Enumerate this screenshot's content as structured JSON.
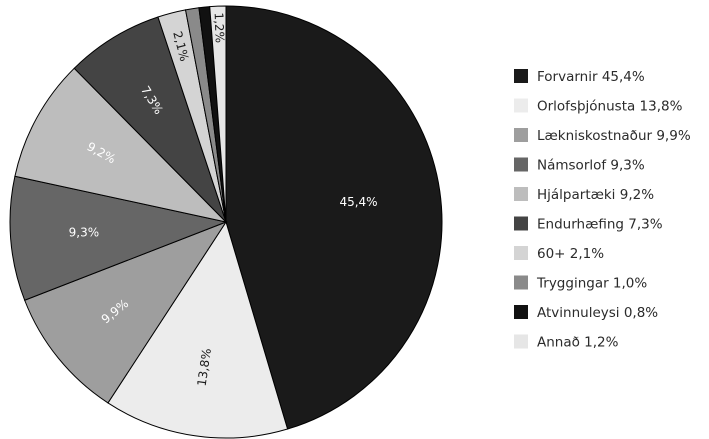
{
  "chart_data": {
    "type": "pie",
    "legend_position": "right",
    "slices": [
      {
        "label": "Forvarnir",
        "value": 45.4,
        "value_label": "45,4%",
        "legend_text": "Forvarnir  45,4%",
        "color": "#1a1a1a"
      },
      {
        "label": "Orlofsþjónusta",
        "value": 13.8,
        "value_label": "13,8%",
        "legend_text": "Orlofsþjónusta  13,8%",
        "color": "#ececec"
      },
      {
        "label": "Lækniskostnaður",
        "value": 9.9,
        "value_label": "9,9%",
        "legend_text": "Lækniskostnaður  9,9%",
        "color": "#9e9e9e"
      },
      {
        "label": "Námsorlof",
        "value": 9.3,
        "value_label": "9,3%",
        "legend_text": "Námsorlof  9,3%",
        "color": "#666666"
      },
      {
        "label": "Hjálpartæki",
        "value": 9.2,
        "value_label": "9,2%",
        "legend_text": "Hjálpartæki  9,2%",
        "color": "#bdbdbd"
      },
      {
        "label": "Endurhæfing",
        "value": 7.3,
        "value_label": "7,3%",
        "legend_text": "Endurhæfing  7,3%",
        "color": "#444444"
      },
      {
        "label": "60+",
        "value": 2.1,
        "value_label": "2,1%",
        "legend_text": "60+  2,1%",
        "color": "#d4d4d4"
      },
      {
        "label": "Tryggingar",
        "value": 1.0,
        "value_label": "",
        "legend_text": "Tryggingar  1,0%",
        "color": "#8a8a8a"
      },
      {
        "label": "Atvinnuleysi",
        "value": 0.8,
        "value_label": "",
        "legend_text": "Atvinnuleysi  0,8%",
        "color": "#111111"
      },
      {
        "label": "Annað",
        "value": 1.2,
        "value_label": "1,2%",
        "legend_text": "Annað 1,2%",
        "color": "#e6e6e6"
      }
    ]
  }
}
